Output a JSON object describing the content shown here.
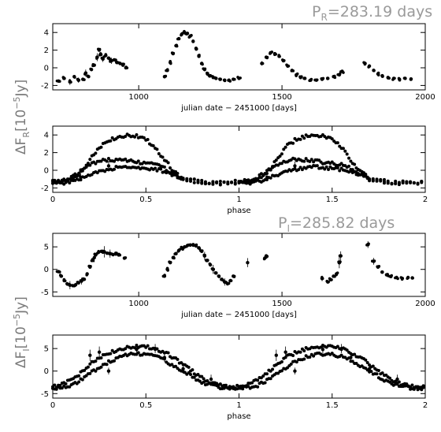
{
  "figure": {
    "period_r": {
      "prefix": "P",
      "sub": "R",
      "text": "=283.19 days"
    },
    "period_i": {
      "prefix": "P",
      "sub": "I",
      "text": "=285.82 days"
    },
    "ylabel_r": {
      "a": "ΔF",
      "sub": "R",
      "b": "[10",
      "sup": "−5",
      "c": "Jy]"
    },
    "ylabel_i": {
      "a": "ΔF",
      "sub": "I",
      "b": "[10",
      "sup": "−5",
      "c": "Jy]"
    }
  },
  "chart_data": [
    {
      "id": "r-time",
      "type": "scatter",
      "xlabel": "julian date − 2451000 [days]",
      "ylabel": "",
      "xlim": [
        700,
        2000
      ],
      "ylim": [
        -2.5,
        5
      ],
      "xticks": [
        1000,
        1500,
        2000
      ],
      "yticks": [
        -2,
        0,
        2,
        4
      ],
      "points": [
        [
          720,
          -1.5
        ],
        [
          740,
          -1.2
        ],
        [
          760,
          -1.6
        ],
        [
          775,
          -1.0
        ],
        [
          790,
          -1.4
        ],
        [
          805,
          -1.3
        ],
        [
          815,
          -0.6
        ],
        [
          825,
          -1.0
        ],
        [
          835,
          -0.2
        ],
        [
          845,
          0.3
        ],
        [
          855,
          1.2
        ],
        [
          862,
          2.0
        ],
        [
          868,
          1.5
        ],
        [
          875,
          1.0
        ],
        [
          885,
          1.4
        ],
        [
          895,
          1.1
        ],
        [
          905,
          0.8
        ],
        [
          915,
          0.9
        ],
        [
          925,
          0.6
        ],
        [
          935,
          0.5
        ],
        [
          945,
          0.3
        ],
        [
          955,
          0.0
        ],
        [
          1090,
          -1.0
        ],
        [
          1100,
          -0.3
        ],
        [
          1110,
          0.6
        ],
        [
          1120,
          1.6
        ],
        [
          1130,
          2.5
        ],
        [
          1140,
          3.3
        ],
        [
          1150,
          3.8
        ],
        [
          1160,
          4.0
        ],
        [
          1170,
          3.9
        ],
        [
          1180,
          3.6
        ],
        [
          1190,
          3.0
        ],
        [
          1200,
          2.2
        ],
        [
          1210,
          1.3
        ],
        [
          1220,
          0.5
        ],
        [
          1230,
          -0.2
        ],
        [
          1240,
          -0.7
        ],
        [
          1250,
          -0.9
        ],
        [
          1260,
          -1.1
        ],
        [
          1270,
          -1.2
        ],
        [
          1285,
          -1.3
        ],
        [
          1300,
          -1.4
        ],
        [
          1315,
          -1.4
        ],
        [
          1330,
          -1.3
        ],
        [
          1350,
          -1.2
        ],
        [
          1430,
          0.5
        ],
        [
          1445,
          1.2
        ],
        [
          1460,
          1.7
        ],
        [
          1475,
          1.6
        ],
        [
          1490,
          1.3
        ],
        [
          1505,
          0.8
        ],
        [
          1520,
          0.2
        ],
        [
          1535,
          -0.3
        ],
        [
          1550,
          -0.8
        ],
        [
          1565,
          -1.1
        ],
        [
          1580,
          -1.2
        ],
        [
          1600,
          -1.4
        ],
        [
          1620,
          -1.4
        ],
        [
          1640,
          -1.3
        ],
        [
          1660,
          -1.2
        ],
        [
          1680,
          -1.0
        ],
        [
          1700,
          -0.8
        ],
        [
          1710,
          -0.4
        ],
        [
          1790,
          0.5
        ],
        [
          1805,
          0.2
        ],
        [
          1820,
          -0.3
        ],
        [
          1835,
          -0.7
        ],
        [
          1850,
          -0.9
        ],
        [
          1870,
          -1.1
        ],
        [
          1890,
          -1.2
        ],
        [
          1910,
          -1.3
        ],
        [
          1930,
          -1.2
        ],
        [
          1950,
          -1.3
        ]
      ],
      "errorbars": [
        [
          760,
          -1.6,
          0.7
        ],
        [
          790,
          -1.4,
          0.6
        ],
        [
          815,
          -0.6,
          0.8
        ],
        [
          855,
          1.2,
          0.9
        ],
        [
          875,
          1.0,
          0.7
        ],
        [
          905,
          0.8,
          0.7
        ],
        [
          1430,
          0.5,
          0.5
        ]
      ]
    },
    {
      "id": "r-phase",
      "type": "scatter",
      "xlabel": "phase",
      "ylabel": "",
      "xlim": [
        0,
        2
      ],
      "ylim": [
        -2.5,
        5
      ],
      "xticks": [
        0,
        0.5,
        1,
        1.5,
        2
      ],
      "yticks": [
        -2,
        0,
        2,
        4
      ],
      "curves": [
        {
          "x": [
            0.0,
            0.05,
            0.1,
            0.15,
            0.2,
            0.25,
            0.3,
            0.35,
            0.4,
            0.45,
            0.5,
            0.55,
            0.6,
            0.65,
            0.7,
            0.8,
            0.9,
            1.0
          ],
          "y": [
            -1.3,
            -1.3,
            -1.1,
            -0.3,
            1.2,
            2.6,
            3.4,
            3.8,
            4.0,
            3.9,
            3.5,
            2.6,
            1.2,
            -0.1,
            -1.0,
            -1.3,
            -1.4,
            -1.3
          ]
        },
        {
          "x": [
            0.0,
            0.05,
            0.1,
            0.15,
            0.2,
            0.25,
            0.3,
            0.35,
            0.4,
            0.45,
            0.5,
            0.55,
            0.6,
            0.65,
            0.7,
            0.8,
            0.9,
            1.0
          ],
          "y": [
            -1.3,
            -1.2,
            -0.8,
            -0.1,
            0.6,
            1.1,
            1.2,
            1.2,
            1.1,
            0.9,
            0.8,
            0.6,
            0.2,
            -0.4,
            -1.0,
            -1.3,
            -1.4,
            -1.3
          ]
        },
        {
          "x": [
            0.0,
            0.05,
            0.1,
            0.15,
            0.2,
            0.25,
            0.3,
            0.35,
            0.4,
            0.45,
            0.5,
            0.55,
            0.6,
            0.65,
            0.7,
            0.8,
            0.9,
            1.0
          ],
          "y": [
            -1.4,
            -1.5,
            -1.3,
            -1.0,
            -0.5,
            -0.2,
            0.1,
            0.3,
            0.4,
            0.3,
            0.2,
            0.1,
            -0.1,
            -0.5,
            -1.0,
            -1.4,
            -1.5,
            -1.4
          ]
        }
      ],
      "errorbars": [
        [
          0.15,
          -0.8,
          0.9
        ],
        [
          0.3,
          0.5,
          1.0
        ],
        [
          1.15,
          -0.8,
          0.9
        ],
        [
          1.3,
          0.5,
          1.0
        ],
        [
          0.7,
          -1.0,
          0.5
        ],
        [
          1.7,
          -1.0,
          0.5
        ]
      ]
    },
    {
      "id": "i-time",
      "type": "scatter",
      "xlabel": "julian date − 2451000 [days]",
      "ylabel": "",
      "xlim": [
        700,
        2000
      ],
      "ylim": [
        -6,
        8
      ],
      "xticks": [
        1000,
        1500,
        2000
      ],
      "yticks": [
        -5,
        0,
        5
      ],
      "points": [
        [
          720,
          -0.5
        ],
        [
          730,
          -1.5
        ],
        [
          740,
          -2.5
        ],
        [
          750,
          -3.2
        ],
        [
          760,
          -3.5
        ],
        [
          770,
          -3.6
        ],
        [
          780,
          -3.4
        ],
        [
          790,
          -3.0
        ],
        [
          800,
          -2.6
        ],
        [
          810,
          -2.2
        ],
        [
          820,
          -1.0
        ],
        [
          830,
          0.5
        ],
        [
          840,
          2.0
        ],
        [
          850,
          3.2
        ],
        [
          860,
          3.8
        ],
        [
          870,
          4.0
        ],
        [
          880,
          3.9
        ],
        [
          890,
          3.6
        ],
        [
          900,
          3.5
        ],
        [
          910,
          3.3
        ],
        [
          920,
          3.4
        ],
        [
          930,
          3.2
        ],
        [
          950,
          2.5
        ],
        [
          1090,
          -1.5
        ],
        [
          1100,
          0.0
        ],
        [
          1110,
          1.5
        ],
        [
          1120,
          2.6
        ],
        [
          1130,
          3.5
        ],
        [
          1140,
          4.2
        ],
        [
          1150,
          4.7
        ],
        [
          1160,
          5.0
        ],
        [
          1170,
          5.3
        ],
        [
          1180,
          5.4
        ],
        [
          1190,
          5.5
        ],
        [
          1200,
          5.2
        ],
        [
          1210,
          4.8
        ],
        [
          1220,
          4.0
        ],
        [
          1230,
          3.0
        ],
        [
          1240,
          2.0
        ],
        [
          1250,
          1.0
        ],
        [
          1260,
          0.0
        ],
        [
          1270,
          -0.8
        ],
        [
          1280,
          -1.5
        ],
        [
          1290,
          -2.2
        ],
        [
          1300,
          -2.8
        ],
        [
          1310,
          -3.2
        ],
        [
          1320,
          -2.5
        ],
        [
          1330,
          -1.5
        ],
        [
          1440,
          2.5
        ],
        [
          1445,
          3.0
        ],
        [
          1640,
          -2.0
        ],
        [
          1660,
          -2.8
        ],
        [
          1670,
          -2.3
        ],
        [
          1680,
          -1.5
        ],
        [
          1690,
          -1.0
        ],
        [
          1700,
          1.5
        ],
        [
          1705,
          3.0
        ],
        [
          1800,
          5.5
        ],
        [
          1820,
          1.8
        ],
        [
          1835,
          0.5
        ],
        [
          1850,
          -0.6
        ],
        [
          1865,
          -1.2
        ],
        [
          1880,
          -1.6
        ],
        [
          1900,
          -1.8
        ],
        [
          1920,
          -2.0
        ],
        [
          1940,
          -1.8
        ],
        [
          1955,
          -1.9
        ]
      ],
      "errorbars": [
        [
          760,
          -3.5,
          1.8
        ],
        [
          800,
          -2.6,
          1.5
        ],
        [
          845,
          2.6,
          2.0
        ],
        [
          880,
          3.9,
          2.5
        ],
        [
          900,
          3.5,
          1.8
        ],
        [
          1230,
          3.0,
          1.8
        ],
        [
          1260,
          0.0,
          2.0
        ],
        [
          1300,
          -2.8,
          1.6
        ],
        [
          1640,
          -2.0,
          1.2
        ],
        [
          1700,
          1.5,
          2.5
        ],
        [
          1705,
          3.0,
          2.0
        ],
        [
          1800,
          5.5,
          1.5
        ],
        [
          1820,
          1.8,
          1.5
        ],
        [
          1380,
          1.5,
          2.0
        ]
      ]
    },
    {
      "id": "i-phase",
      "type": "scatter",
      "xlabel": "phase",
      "ylabel": "",
      "xlim": [
        0,
        2
      ],
      "ylim": [
        -6,
        8
      ],
      "xticks": [
        0,
        0.5,
        1,
        1.5,
        2
      ],
      "yticks": [
        -5,
        0,
        5
      ],
      "curves": [
        {
          "x": [
            0.0,
            0.05,
            0.1,
            0.15,
            0.2,
            0.25,
            0.3,
            0.35,
            0.4,
            0.45,
            0.5,
            0.55,
            0.6,
            0.65,
            0.7,
            0.75,
            0.8,
            0.85,
            0.9,
            0.95,
            1.0
          ],
          "y": [
            -3.5,
            -3.0,
            -2.0,
            -0.5,
            1.5,
            3.0,
            4.0,
            4.8,
            5.3,
            5.5,
            5.4,
            5.0,
            4.2,
            3.0,
            1.5,
            0.0,
            -1.5,
            -2.6,
            -3.2,
            -3.5,
            -3.5
          ]
        },
        {
          "x": [
            0.0,
            0.05,
            0.1,
            0.15,
            0.2,
            0.25,
            0.3,
            0.35,
            0.4,
            0.45,
            0.5,
            0.55,
            0.6,
            0.65,
            0.7,
            0.75,
            0.8,
            0.85,
            0.9,
            0.95,
            1.0
          ],
          "y": [
            -3.8,
            -3.6,
            -3.2,
            -2.0,
            -0.5,
            0.8,
            2.0,
            3.0,
            3.6,
            3.8,
            3.7,
            3.2,
            2.4,
            1.2,
            0.0,
            -1.2,
            -2.4,
            -3.2,
            -3.6,
            -3.8,
            -3.8
          ]
        }
      ],
      "errorbars": [
        [
          0.2,
          3.5,
          2.5
        ],
        [
          0.25,
          4.2,
          2.5
        ],
        [
          0.45,
          4.8,
          1.8
        ],
        [
          0.55,
          5.0,
          2.0
        ],
        [
          0.6,
          3.0,
          2.0
        ],
        [
          0.7,
          0.5,
          2.2
        ],
        [
          0.85,
          -1.8,
          2.0
        ],
        [
          1.2,
          3.5,
          2.5
        ],
        [
          1.25,
          4.2,
          2.5
        ],
        [
          1.45,
          4.8,
          1.8
        ],
        [
          1.55,
          5.0,
          2.0
        ],
        [
          1.6,
          3.0,
          2.0
        ],
        [
          1.7,
          0.5,
          2.2
        ],
        [
          1.85,
          -1.8,
          2.0
        ],
        [
          0.3,
          0.0,
          1.5
        ],
        [
          1.3,
          0.0,
          1.5
        ]
      ]
    }
  ]
}
